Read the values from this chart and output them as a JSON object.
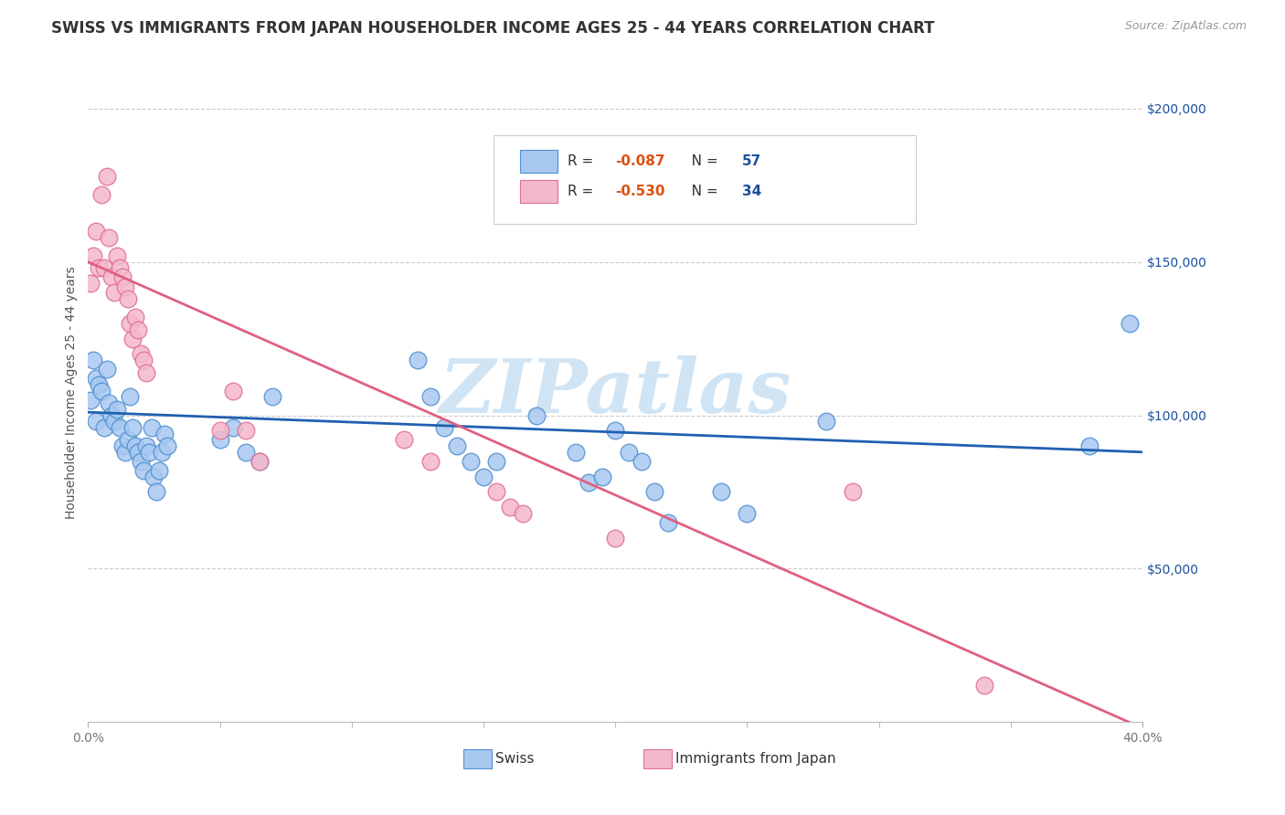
{
  "title": "SWISS VS IMMIGRANTS FROM JAPAN HOUSEHOLDER INCOME AGES 25 - 44 YEARS CORRELATION CHART",
  "source": "Source: ZipAtlas.com",
  "ylabel": "Householder Income Ages 25 - 44 years",
  "legend_swiss": "Swiss",
  "legend_japan": "Immigrants from Japan",
  "swiss_R": "-0.087",
  "swiss_N": "57",
  "japan_R": "-0.530",
  "japan_N": "34",
  "color_swiss_fill": "#a8c8f0",
  "color_japan_fill": "#f4b8cc",
  "color_swiss_edge": "#5090d0",
  "color_japan_edge": "#e07090",
  "color_swiss_line": "#2060b0",
  "color_japan_line": "#e06080",
  "ytick_labels": [
    "$50,000",
    "$100,000",
    "$150,000",
    "$200,000"
  ],
  "ytick_values": [
    50000,
    100000,
    150000,
    200000
  ],
  "ylim": [
    0,
    215000
  ],
  "xlim": [
    0.0,
    0.4
  ],
  "swiss_points": [
    [
      0.001,
      105000
    ],
    [
      0.002,
      118000
    ],
    [
      0.003,
      112000
    ],
    [
      0.003,
      98000
    ],
    [
      0.004,
      110000
    ],
    [
      0.005,
      108000
    ],
    [
      0.006,
      96000
    ],
    [
      0.007,
      115000
    ],
    [
      0.008,
      104000
    ],
    [
      0.009,
      100000
    ],
    [
      0.01,
      98000
    ],
    [
      0.011,
      102000
    ],
    [
      0.012,
      96000
    ],
    [
      0.013,
      90000
    ],
    [
      0.014,
      88000
    ],
    [
      0.015,
      92000
    ],
    [
      0.016,
      106000
    ],
    [
      0.017,
      96000
    ],
    [
      0.018,
      90000
    ],
    [
      0.019,
      88000
    ],
    [
      0.02,
      85000
    ],
    [
      0.021,
      82000
    ],
    [
      0.022,
      90000
    ],
    [
      0.023,
      88000
    ],
    [
      0.024,
      96000
    ],
    [
      0.025,
      80000
    ],
    [
      0.026,
      75000
    ],
    [
      0.027,
      82000
    ],
    [
      0.028,
      88000
    ],
    [
      0.029,
      94000
    ],
    [
      0.03,
      90000
    ],
    [
      0.05,
      92000
    ],
    [
      0.055,
      96000
    ],
    [
      0.06,
      88000
    ],
    [
      0.065,
      85000
    ],
    [
      0.07,
      106000
    ],
    [
      0.125,
      118000
    ],
    [
      0.13,
      106000
    ],
    [
      0.135,
      96000
    ],
    [
      0.14,
      90000
    ],
    [
      0.145,
      85000
    ],
    [
      0.15,
      80000
    ],
    [
      0.155,
      85000
    ],
    [
      0.17,
      100000
    ],
    [
      0.185,
      88000
    ],
    [
      0.19,
      78000
    ],
    [
      0.195,
      80000
    ],
    [
      0.2,
      95000
    ],
    [
      0.205,
      88000
    ],
    [
      0.21,
      85000
    ],
    [
      0.215,
      75000
    ],
    [
      0.22,
      65000
    ],
    [
      0.24,
      75000
    ],
    [
      0.25,
      68000
    ],
    [
      0.28,
      98000
    ],
    [
      0.38,
      90000
    ],
    [
      0.395,
      130000
    ]
  ],
  "japan_points": [
    [
      0.001,
      143000
    ],
    [
      0.002,
      152000
    ],
    [
      0.003,
      160000
    ],
    [
      0.004,
      148000
    ],
    [
      0.005,
      172000
    ],
    [
      0.006,
      148000
    ],
    [
      0.007,
      178000
    ],
    [
      0.008,
      158000
    ],
    [
      0.009,
      145000
    ],
    [
      0.01,
      140000
    ],
    [
      0.011,
      152000
    ],
    [
      0.012,
      148000
    ],
    [
      0.013,
      145000
    ],
    [
      0.014,
      142000
    ],
    [
      0.015,
      138000
    ],
    [
      0.016,
      130000
    ],
    [
      0.017,
      125000
    ],
    [
      0.018,
      132000
    ],
    [
      0.019,
      128000
    ],
    [
      0.02,
      120000
    ],
    [
      0.021,
      118000
    ],
    [
      0.022,
      114000
    ],
    [
      0.05,
      95000
    ],
    [
      0.055,
      108000
    ],
    [
      0.06,
      95000
    ],
    [
      0.065,
      85000
    ],
    [
      0.12,
      92000
    ],
    [
      0.13,
      85000
    ],
    [
      0.155,
      75000
    ],
    [
      0.16,
      70000
    ],
    [
      0.165,
      68000
    ],
    [
      0.2,
      60000
    ],
    [
      0.29,
      75000
    ],
    [
      0.34,
      12000
    ]
  ],
  "swiss_line_x": [
    0.0,
    0.4
  ],
  "swiss_line_y": [
    101000,
    88000
  ],
  "japan_line_x": [
    0.0,
    0.4
  ],
  "japan_line_y": [
    150000,
    -2000
  ],
  "background_color": "#ffffff",
  "grid_color": "#cccccc",
  "title_fontsize": 12,
  "axis_label_fontsize": 10,
  "tick_fontsize": 10,
  "watermark": "ZIPatlas",
  "watermark_color": "#d0e4f4",
  "watermark_fontsize": 60,
  "legend_text_color": "#1a50a0",
  "legend_r_color": "#e05010"
}
